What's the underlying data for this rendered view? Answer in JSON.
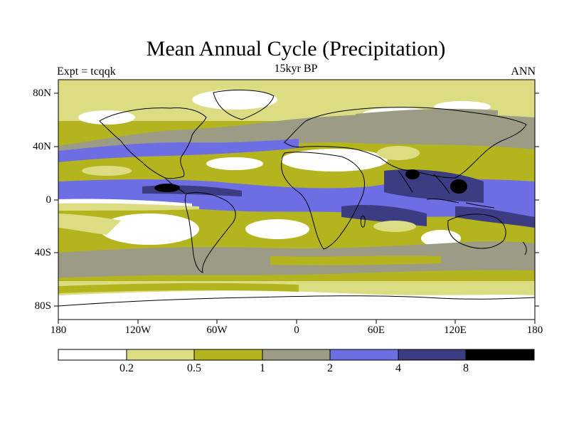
{
  "title": "Mean Annual Cycle (Precipitation)",
  "subtitle": "15kyr BP",
  "left_label": "Expt = tcqqk",
  "right_label": "ANN",
  "lat_labels": [
    "80N",
    "40N",
    "0",
    "40S",
    "80S"
  ],
  "lon_labels": [
    "180",
    "120W",
    "60W",
    "0",
    "60E",
    "120E",
    "180"
  ],
  "colorbar": {
    "labels": [
      "0.2",
      "0.5",
      "1",
      "2",
      "4",
      "8"
    ],
    "colors": [
      "#ffffff",
      "#dcdc82",
      "#b4b41e",
      "#9c9c86",
      "#6e6ee4",
      "#3c3c82",
      "#000000"
    ]
  }
}
